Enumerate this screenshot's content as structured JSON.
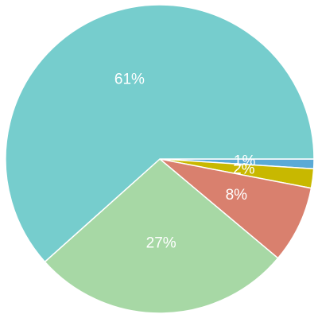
{
  "chart_data": {
    "type": "pie",
    "values": [
      1,
      2,
      8,
      27,
      61
    ],
    "value_labels": [
      "1%",
      "2%",
      "8%",
      "27%",
      "61%"
    ],
    "colors": [
      "#5aaad6",
      "#c8b800",
      "#d9806e",
      "#a7d8a5",
      "#76cdcd"
    ]
  }
}
